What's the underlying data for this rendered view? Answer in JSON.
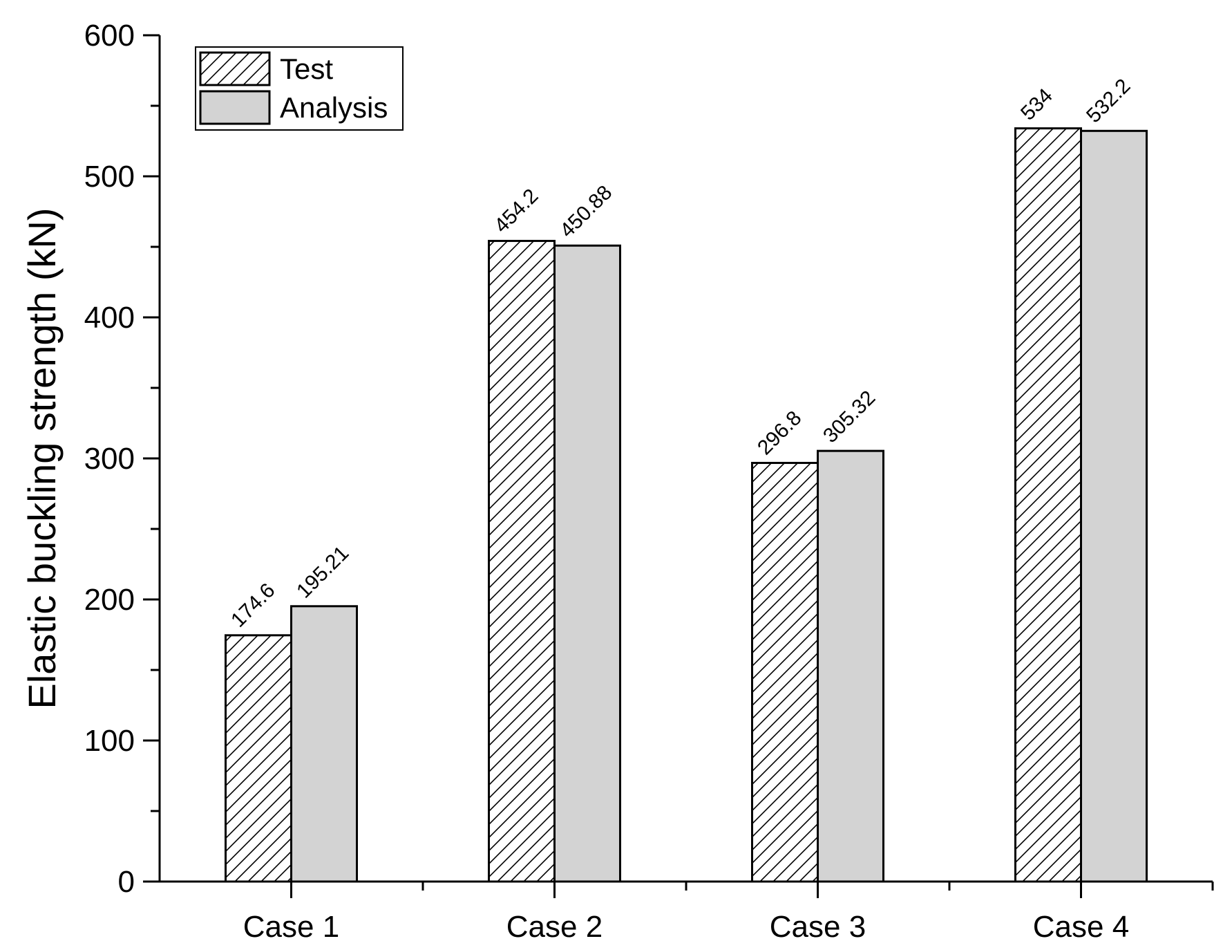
{
  "chart_data": {
    "type": "bar",
    "title": "",
    "xlabel": "",
    "ylabel": "Elastic buckling strength (kN)",
    "categories": [
      "Case 1",
      "Case 2",
      "Case 3",
      "Case 4"
    ],
    "series": [
      {
        "name": "Test",
        "values": [
          174.6,
          454.2,
          296.8,
          534
        ],
        "labels": [
          "174.6",
          "454.2",
          "296.8",
          "534"
        ],
        "fill": "hatched"
      },
      {
        "name": "Analysis",
        "values": [
          195.21,
          450.88,
          305.32,
          532.2
        ],
        "labels": [
          "195.21",
          "450.88",
          "305.32",
          "532.2"
        ],
        "fill": "#d3d3d3"
      }
    ],
    "ylim": [
      0,
      600
    ],
    "yticks": [
      0,
      100,
      200,
      300,
      400,
      500,
      600
    ],
    "grid": false,
    "legend_position": "top-left"
  }
}
